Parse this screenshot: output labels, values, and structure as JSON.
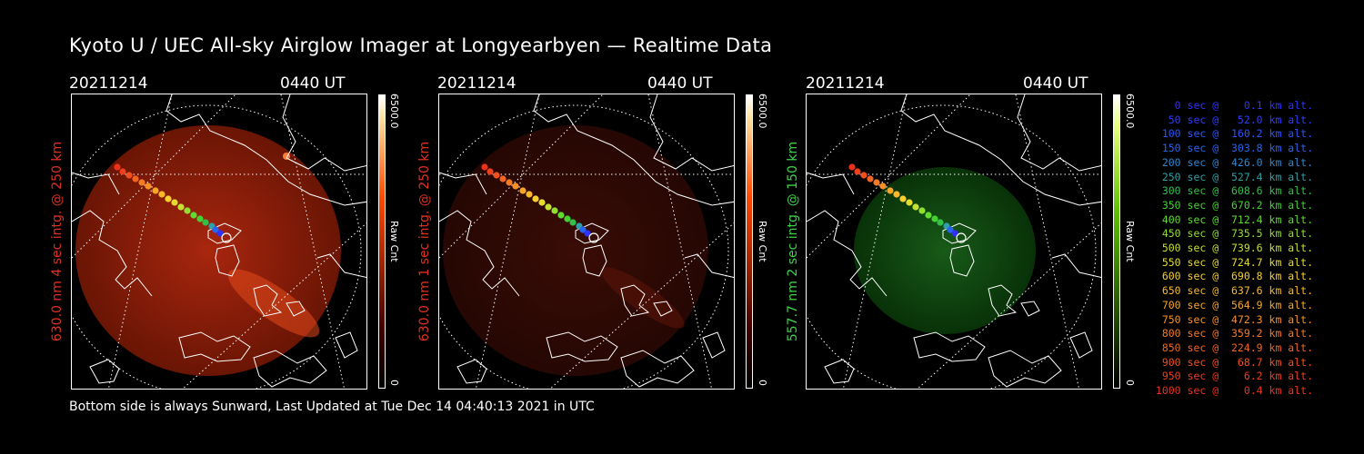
{
  "title": "Kyoto U / UEC All-sky Airglow Imager at Longyearbyen — Realtime Data",
  "footer": "Bottom side is always Sunward, Last Updated at Tue Dec 14 04:40:13 2021 in UTC",
  "panels": [
    {
      "date": "20211214",
      "time": "0440 UT",
      "ylabel": "630.0 nm 4 sec intg. @ 250 km",
      "ylabel_color": "#e0301e",
      "colorbar_max": "6500.0",
      "colorbar_min": "0",
      "colorbar_unit": "Raw Cnt",
      "colorbar_color": "#ff4800",
      "image_color": "red",
      "brightness": "bright"
    },
    {
      "date": "20211214",
      "time": "0440 UT",
      "ylabel": "630.0 nm 1 sec intg. @ 250 km",
      "ylabel_color": "#e0301e",
      "colorbar_max": "6500.0",
      "colorbar_min": "0",
      "colorbar_unit": "Raw Cnt",
      "colorbar_color": "#ff4800",
      "image_color": "red",
      "brightness": "dim"
    },
    {
      "date": "20211214",
      "time": "0440 UT",
      "ylabel": "557.7 nm 2 sec intg. @ 150 km",
      "ylabel_color": "#3fd04a",
      "colorbar_max": "6500.0",
      "colorbar_min": "0",
      "colorbar_unit": "Raw Cnt",
      "colorbar_color": "#5fbf00",
      "image_color": "green",
      "brightness": "dim"
    }
  ],
  "legend": [
    {
      "text": "0 sec @    0.1 km alt.",
      "color": "#3030ff"
    },
    {
      "text": "50 sec @   52.0 km alt.",
      "color": "#2f3cff"
    },
    {
      "text": "100 sec @  160.2 km alt.",
      "color": "#2a55ff"
    },
    {
      "text": "150 sec @  303.8 km alt.",
      "color": "#2a63f0"
    },
    {
      "text": "200 sec @  426.0 km alt.",
      "color": "#2d86d0"
    },
    {
      "text": "250 sec @  527.4 km alt.",
      "color": "#2fa0a8"
    },
    {
      "text": "300 sec @  608.6 km alt.",
      "color": "#33c04a"
    },
    {
      "text": "350 sec @  670.2 km alt.",
      "color": "#44d233"
    },
    {
      "text": "400 sec @  712.4 km alt.",
      "color": "#5edc30"
    },
    {
      "text": "450 sec @  735.5 km alt.",
      "color": "#90e030"
    },
    {
      "text": "500 sec @  739.6 km alt.",
      "color": "#c4e030"
    },
    {
      "text": "550 sec @  724.7 km alt.",
      "color": "#e6dc30"
    },
    {
      "text": "600 sec @  690.8 km alt.",
      "color": "#f7cf2e"
    },
    {
      "text": "650 sec @  637.6 km alt.",
      "color": "#f8b82a"
    },
    {
      "text": "700 sec @  564.9 km alt.",
      "color": "#f7a528"
    },
    {
      "text": "750 sec @  472.3 km alt.",
      "color": "#f78f26"
    },
    {
      "text": "800 sec @  359.2 km alt.",
      "color": "#f47a24"
    },
    {
      "text": "850 sec @  224.9 km alt.",
      "color": "#f26422"
    },
    {
      "text": "900 sec @   68.7 km alt.",
      "color": "#f04f20"
    },
    {
      "text": "950 sec @    6.2 km alt.",
      "color": "#ee3f1e"
    },
    {
      "text": "1000 sec @    0.4 km alt.",
      "color": "#ec321c"
    }
  ]
}
